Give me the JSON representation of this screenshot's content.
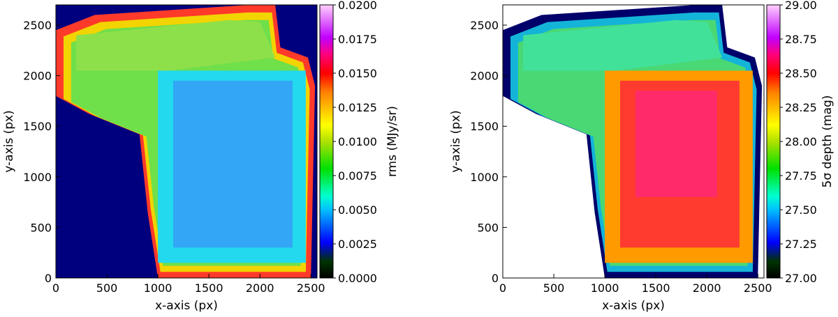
{
  "chart_data": [
    {
      "type": "heatmap",
      "xlabel": "x-axis (px)",
      "ylabel": "y-axis (px)",
      "xlim": [
        0,
        2560
      ],
      "ylim": [
        0,
        2700
      ],
      "xticks": [
        "0",
        "500",
        "1000",
        "1500",
        "2000",
        "2500"
      ],
      "xtick_values": [
        0,
        500,
        1000,
        1500,
        2000,
        2500
      ],
      "yticks": [
        "0",
        "500",
        "1000",
        "1500",
        "2000",
        "2500"
      ],
      "ytick_values": [
        0,
        500,
        1000,
        1500,
        2000,
        2500
      ],
      "colorbar": {
        "label": "rms (MJy/sr)",
        "range": [
          0.0,
          0.02
        ],
        "ticks": [
          "0.0000",
          "0.0025",
          "0.0050",
          "0.0075",
          "0.0100",
          "0.0125",
          "0.0150",
          "0.0175",
          "0.0200"
        ],
        "tick_values": [
          0.0,
          0.0025,
          0.005,
          0.0075,
          0.01,
          0.0125,
          0.015,
          0.0175,
          0.02
        ]
      },
      "background_color": "#00007f",
      "regions": [
        {
          "name": "edge",
          "color": "#ff3a2a"
        },
        {
          "name": "ring",
          "color": "#f2d400"
        },
        {
          "name": "outer",
          "color": "#6fdf4a"
        },
        {
          "name": "upper-field",
          "color": "#8ee04a"
        },
        {
          "name": "mid-field",
          "color": "#22d9ee"
        },
        {
          "name": "deep-field",
          "color": "#33a6f5"
        }
      ]
    },
    {
      "type": "heatmap",
      "xlabel": "x-axis (px)",
      "ylabel": "y-axis (px)",
      "xlim": [
        0,
        2560
      ],
      "ylim": [
        0,
        2700
      ],
      "xticks": [
        "0",
        "500",
        "1000",
        "1500",
        "2000",
        "2500"
      ],
      "xtick_values": [
        0,
        500,
        1000,
        1500,
        2000,
        2500
      ],
      "yticks": [
        "0",
        "500",
        "1000",
        "1500",
        "2000",
        "2500"
      ],
      "ytick_values": [
        0,
        500,
        1000,
        1500,
        2000,
        2500
      ],
      "colorbar": {
        "label": "5σ depth (mag)",
        "range": [
          27.0,
          29.0
        ],
        "ticks": [
          "27.00",
          "27.25",
          "27.50",
          "27.75",
          "28.00",
          "28.25",
          "28.50",
          "28.75",
          "29.00"
        ],
        "tick_values": [
          27.0,
          27.25,
          27.5,
          27.75,
          28.0,
          28.25,
          28.5,
          28.75,
          29.0
        ]
      },
      "background_color": "#ffffff",
      "regions": [
        {
          "name": "edge",
          "color": "#00006a"
        },
        {
          "name": "ring",
          "color": "#14b4d8"
        },
        {
          "name": "outer",
          "color": "#4ad874"
        },
        {
          "name": "upper-field",
          "color": "#42e19a"
        },
        {
          "name": "mid-field",
          "color": "#ff9a00"
        },
        {
          "name": "deep-field",
          "color": "#ff3b2f"
        },
        {
          "name": "deepest",
          "color": "#ff2a6a"
        }
      ]
    }
  ]
}
